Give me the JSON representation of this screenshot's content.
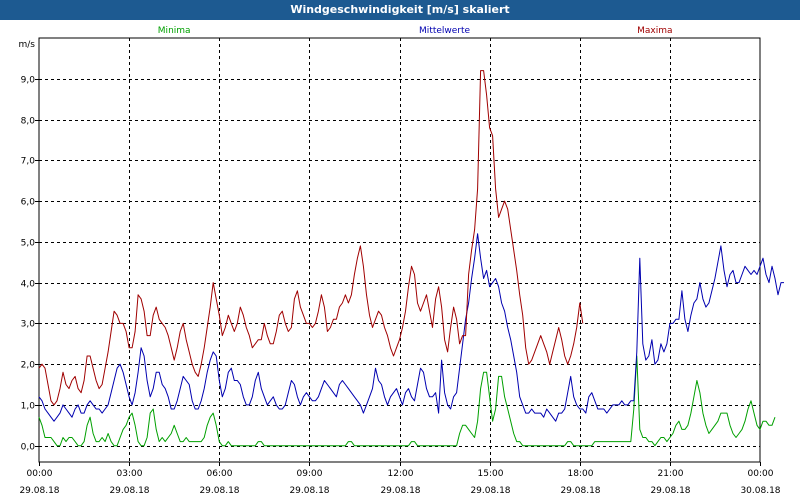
{
  "window": {
    "title": "Windgeschwindigkeit [m/s] skaliert"
  },
  "chart_data": {
    "type": "line",
    "title": "Windgeschwindigkeit [m/s] skaliert",
    "ylabel": "m/s",
    "ylim": [
      -0.4,
      10.0
    ],
    "yticks": [
      0.0,
      1.0,
      2.0,
      3.0,
      4.0,
      5.0,
      6.0,
      7.0,
      8.0,
      9.0
    ],
    "ytick_labels": [
      "0,0",
      "1,0",
      "2,0",
      "3,0",
      "4,0",
      "5,0",
      "6,0",
      "7,0",
      "8,0",
      "9,0"
    ],
    "x_unit": "hours from 29.08.18 00:00",
    "xlim": [
      0,
      24
    ],
    "xticks": [
      0,
      3,
      6,
      9,
      12,
      15,
      18,
      21,
      24
    ],
    "xtick_labels": [
      [
        "00:00",
        "29.08.18"
      ],
      [
        "03:00",
        "29.08.18"
      ],
      [
        "06:00",
        "29.08.18"
      ],
      [
        "09:00",
        "29.08.18"
      ],
      [
        "12:00",
        "29.08.18"
      ],
      [
        "15:00",
        "29.08.18"
      ],
      [
        "18:00",
        "29.08.18"
      ],
      [
        "21:00",
        "29.08.18"
      ],
      [
        "00:00",
        "30.08.18"
      ]
    ],
    "grid": true,
    "interval_hours": 0.1,
    "series": [
      {
        "name": "Minima",
        "color": "#00a000",
        "values": [
          0.7,
          0.5,
          0.2,
          0.2,
          0.2,
          0.1,
          0.0,
          0.0,
          0.2,
          0.1,
          0.2,
          0.2,
          0.1,
          0.0,
          0.0,
          0.1,
          0.5,
          0.7,
          0.3,
          0.1,
          0.1,
          0.2,
          0.1,
          0.3,
          0.1,
          0.0,
          0.0,
          0.2,
          0.4,
          0.5,
          0.7,
          0.8,
          0.5,
          0.1,
          0.0,
          0.0,
          0.2,
          0.8,
          0.9,
          0.4,
          0.1,
          0.2,
          0.1,
          0.2,
          0.3,
          0.5,
          0.3,
          0.1,
          0.1,
          0.2,
          0.1,
          0.1,
          0.1,
          0.1,
          0.1,
          0.2,
          0.5,
          0.7,
          0.8,
          0.5,
          0.1,
          0.0,
          0.0,
          0.1,
          0.0,
          0.0,
          0.0,
          0.0,
          0.0,
          0.0,
          0.0,
          0.0,
          0.0,
          0.1,
          0.1,
          0.0,
          0.0,
          0.0,
          0.0,
          0.0,
          0.0,
          0.0,
          0.0,
          0.0,
          0.0,
          0.0,
          0.0,
          0.0,
          0.0,
          0.0,
          0.0,
          0.0,
          0.0,
          0.0,
          0.0,
          0.0,
          0.0,
          0.0,
          0.0,
          0.0,
          0.0,
          0.0,
          0.0,
          0.1,
          0.1,
          0.0,
          0.0,
          0.0,
          0.0,
          0.0,
          0.0,
          0.0,
          0.0,
          0.0,
          0.0,
          0.0,
          0.0,
          0.0,
          0.0,
          0.0,
          0.0,
          0.0,
          0.0,
          0.0,
          0.1,
          0.1,
          0.0,
          0.0,
          0.0,
          0.0,
          0.0,
          0.0,
          0.0,
          0.0,
          0.0,
          0.0,
          0.0,
          0.0,
          0.0,
          0.0,
          0.3,
          0.5,
          0.5,
          0.4,
          0.3,
          0.2,
          0.6,
          1.4,
          1.8,
          1.8,
          1.2,
          0.6,
          0.9,
          1.7,
          1.7,
          1.2,
          0.9,
          0.6,
          0.3,
          0.1,
          0.1,
          0.0,
          0.0,
          0.0,
          0.0,
          0.0,
          0.0,
          0.0,
          0.0,
          0.0,
          0.0,
          0.0,
          0.0,
          0.0,
          0.0,
          0.0,
          0.1,
          0.1,
          0.0,
          0.0,
          0.0,
          0.0,
          0.0,
          0.0,
          0.0,
          0.1,
          0.1,
          0.1,
          0.1,
          0.1,
          0.1,
          0.1,
          0.1,
          0.1,
          0.1,
          0.1,
          0.1,
          0.1,
          0.9,
          2.2,
          0.4,
          0.2,
          0.2,
          0.1,
          0.1,
          0.0,
          0.1,
          0.2,
          0.2,
          0.1,
          0.2,
          0.3,
          0.5,
          0.6,
          0.4,
          0.4,
          0.5,
          0.8,
          1.2,
          1.6,
          1.3,
          0.8,
          0.5,
          0.3,
          0.4,
          0.5,
          0.6,
          0.8,
          0.8,
          0.8,
          0.5,
          0.3,
          0.2,
          0.3,
          0.4,
          0.6,
          0.9,
          1.1,
          0.8,
          0.5,
          0.4,
          0.6,
          0.6,
          0.5,
          0.5,
          0.7
        ]
      },
      {
        "name": "Mittelwerte",
        "color": "#0000b0",
        "values": [
          1.2,
          1.1,
          0.9,
          0.8,
          0.7,
          0.6,
          0.7,
          0.8,
          1.0,
          0.9,
          0.8,
          0.7,
          0.9,
          1.0,
          0.8,
          0.8,
          1.0,
          1.1,
          1.0,
          0.9,
          0.9,
          0.8,
          0.9,
          1.0,
          1.3,
          1.6,
          1.9,
          2.0,
          1.8,
          1.5,
          1.2,
          1.0,
          1.3,
          1.8,
          2.4,
          2.2,
          1.6,
          1.2,
          1.4,
          1.8,
          1.8,
          1.5,
          1.4,
          1.2,
          0.9,
          0.9,
          1.1,
          1.4,
          1.7,
          1.6,
          1.5,
          1.1,
          0.9,
          0.9,
          1.1,
          1.4,
          1.8,
          2.1,
          2.3,
          2.2,
          1.6,
          1.2,
          1.4,
          1.8,
          1.9,
          1.6,
          1.6,
          1.5,
          1.2,
          1.0,
          1.0,
          1.2,
          1.6,
          1.8,
          1.4,
          1.2,
          1.0,
          1.1,
          1.2,
          1.0,
          0.9,
          0.9,
          1.0,
          1.3,
          1.6,
          1.5,
          1.2,
          1.0,
          1.2,
          1.3,
          1.2,
          1.1,
          1.1,
          1.2,
          1.4,
          1.6,
          1.5,
          1.4,
          1.3,
          1.2,
          1.5,
          1.6,
          1.5,
          1.4,
          1.3,
          1.2,
          1.1,
          1.0,
          0.8,
          1.0,
          1.2,
          1.4,
          1.9,
          1.6,
          1.5,
          1.2,
          1.0,
          1.2,
          1.3,
          1.4,
          1.2,
          1.0,
          1.3,
          1.4,
          1.2,
          1.1,
          1.5,
          1.9,
          1.8,
          1.4,
          1.2,
          1.2,
          1.3,
          0.8,
          2.1,
          1.3,
          1.0,
          0.9,
          1.2,
          1.3,
          1.9,
          2.5,
          3.1,
          3.5,
          4.1,
          4.6,
          5.2,
          4.6,
          4.1,
          4.3,
          3.9,
          4.0,
          4.1,
          3.9,
          3.5,
          3.3,
          2.9,
          2.6,
          2.2,
          1.8,
          1.2,
          1.0,
          0.8,
          0.8,
          0.9,
          0.8,
          0.8,
          0.8,
          0.7,
          0.9,
          0.8,
          0.7,
          0.6,
          0.8,
          0.8,
          0.9,
          1.3,
          1.7,
          1.2,
          1.0,
          0.9,
          0.9,
          0.8,
          1.2,
          1.3,
          1.1,
          0.9,
          0.9,
          0.9,
          0.8,
          0.9,
          1.0,
          1.0,
          1.0,
          1.1,
          1.0,
          1.0,
          1.1,
          1.1,
          2.3,
          4.6,
          2.5,
          2.1,
          2.2,
          2.6,
          2.0,
          2.1,
          2.5,
          2.3,
          2.5,
          3.0,
          3.0,
          3.1,
          3.1,
          3.8,
          3.1,
          2.8,
          3.2,
          3.5,
          3.6,
          4.0,
          3.6,
          3.4,
          3.5,
          3.8,
          4.1,
          4.5,
          4.9,
          4.3,
          3.9,
          4.2,
          4.3,
          4.0,
          4.0,
          4.2,
          4.4,
          4.3,
          4.2,
          4.3,
          4.2,
          4.4,
          4.6,
          4.2,
          4.0,
          4.4,
          4.1,
          3.7,
          4.0,
          4.0
        ]
      },
      {
        "name": "Maxima",
        "color": "#a00000",
        "values": [
          1.9,
          2.0,
          1.9,
          1.5,
          1.1,
          1.0,
          1.1,
          1.4,
          1.8,
          1.5,
          1.4,
          1.6,
          1.7,
          1.4,
          1.3,
          1.6,
          2.2,
          2.2,
          1.9,
          1.6,
          1.4,
          1.5,
          1.9,
          2.3,
          2.8,
          3.3,
          3.2,
          3.0,
          3.0,
          2.8,
          2.4,
          2.4,
          2.8,
          3.7,
          3.6,
          3.3,
          2.7,
          2.7,
          3.2,
          3.4,
          3.1,
          3.0,
          2.9,
          2.7,
          2.4,
          2.1,
          2.4,
          2.8,
          3.0,
          2.6,
          2.3,
          2.0,
          1.8,
          1.7,
          2.0,
          2.4,
          2.9,
          3.4,
          4.0,
          3.6,
          3.2,
          2.7,
          2.9,
          3.2,
          3.0,
          2.8,
          3.0,
          3.4,
          3.2,
          2.9,
          2.7,
          2.4,
          2.5,
          2.6,
          2.6,
          3.0,
          2.7,
          2.5,
          2.5,
          2.8,
          3.2,
          3.3,
          3.0,
          2.8,
          2.9,
          3.6,
          3.8,
          3.4,
          3.2,
          3.0,
          3.0,
          2.9,
          3.0,
          3.3,
          3.7,
          3.4,
          2.8,
          2.9,
          3.1,
          3.1,
          3.4,
          3.5,
          3.7,
          3.5,
          3.7,
          4.2,
          4.6,
          4.9,
          4.4,
          3.7,
          3.2,
          2.9,
          3.1,
          3.3,
          3.2,
          2.9,
          2.7,
          2.4,
          2.2,
          2.4,
          2.6,
          2.9,
          3.3,
          3.9,
          4.4,
          4.2,
          3.5,
          3.3,
          3.5,
          3.7,
          3.3,
          2.9,
          3.6,
          3.9,
          3.4,
          2.6,
          2.3,
          2.9,
          3.4,
          3.1,
          2.5,
          2.7,
          2.7,
          4.2,
          4.8,
          5.3,
          6.3,
          9.2,
          9.2,
          8.6,
          7.8,
          7.6,
          6.3,
          5.6,
          5.8,
          6.0,
          5.8,
          5.3,
          4.8,
          4.3,
          3.7,
          3.2,
          2.4,
          2.0,
          2.1,
          2.3,
          2.5,
          2.7,
          2.5,
          2.3,
          2.0,
          2.3,
          2.6,
          2.9,
          2.6,
          2.2,
          2.0,
          2.2,
          2.5,
          2.9,
          3.5,
          3.0
        ]
      }
    ]
  }
}
